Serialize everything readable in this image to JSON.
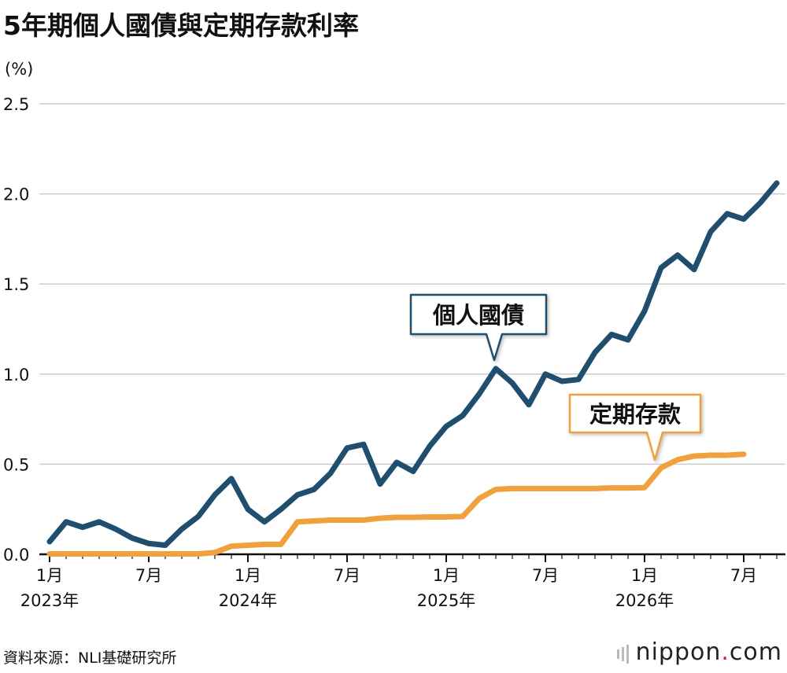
{
  "title": "5年期個人國債與定期存款利率",
  "unit_label": "(%)",
  "source": "資料來源：NLI基礎研究所",
  "logo": {
    "text": "nippon",
    "dot": ".",
    "suffix": "com",
    "icon": "bars-icon"
  },
  "colors": {
    "bond": "#1f4e6e",
    "deposit": "#f0a03c",
    "grid": "#cccccc",
    "axis": "#111111"
  },
  "chart_data": {
    "type": "line",
    "title": "5年期個人國債與定期存款利率",
    "ylabel": "(%)",
    "ylim": [
      0,
      2.5
    ],
    "yticks": [
      "0.0",
      "0.5",
      "1.0",
      "1.5",
      "2.0",
      "2.5"
    ],
    "x_tick_labels": [
      {
        "index": 0,
        "month": "1月",
        "year": "2023年"
      },
      {
        "index": 6,
        "month": "7月",
        "year": ""
      },
      {
        "index": 12,
        "month": "1月",
        "year": "2024年"
      },
      {
        "index": 18,
        "month": "7月",
        "year": ""
      },
      {
        "index": 24,
        "month": "1月",
        "year": "2025年"
      },
      {
        "index": 30,
        "month": "7月",
        "year": ""
      },
      {
        "index": 36,
        "month": "1月",
        "year": "2026年"
      },
      {
        "index": 42,
        "month": "7月",
        "year": ""
      }
    ],
    "series": [
      {
        "name": "個人國債",
        "color": "#1f4e6e",
        "values": [
          0.07,
          0.18,
          0.15,
          0.18,
          0.14,
          0.09,
          0.06,
          0.05,
          0.14,
          0.21,
          0.33,
          0.42,
          0.25,
          0.18,
          0.25,
          0.33,
          0.36,
          0.45,
          0.59,
          0.61,
          0.39,
          0.51,
          0.46,
          0.6,
          0.71,
          0.77,
          0.89,
          1.03,
          0.95,
          0.83,
          1.0,
          0.96,
          0.97,
          1.12,
          1.22,
          1.19,
          1.35,
          1.59,
          1.66,
          1.58,
          1.79,
          1.89,
          1.86,
          1.95,
          2.06
        ]
      },
      {
        "name": "定期存款",
        "color": "#f0a03c",
        "values": [
          0.002,
          0.002,
          0.002,
          0.002,
          0.002,
          0.002,
          0.002,
          0.002,
          0.002,
          0.002,
          0.01,
          0.045,
          0.05,
          0.055,
          0.055,
          0.18,
          0.185,
          0.19,
          0.19,
          0.19,
          0.2,
          0.205,
          0.205,
          0.207,
          0.207,
          0.21,
          0.31,
          0.36,
          0.365,
          0.365,
          0.365,
          0.365,
          0.365,
          0.365,
          0.368,
          0.368,
          0.37,
          0.48,
          0.525,
          0.545,
          0.55,
          0.55,
          0.555
        ]
      }
    ],
    "annotations": [
      {
        "text": "個人國債",
        "series": 0
      },
      {
        "text": "定期存款",
        "series": 1
      }
    ]
  }
}
